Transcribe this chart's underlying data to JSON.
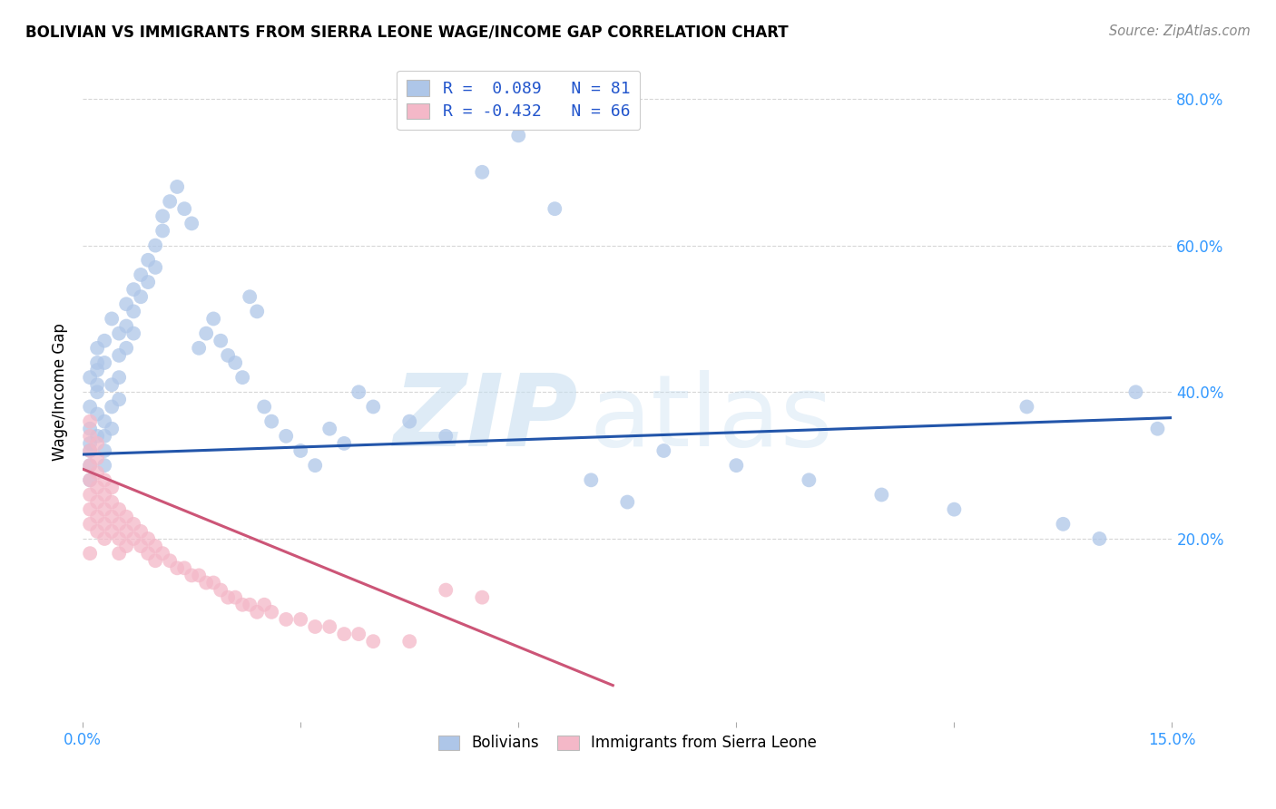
{
  "title": "BOLIVIAN VS IMMIGRANTS FROM SIERRA LEONE WAGE/INCOME GAP CORRELATION CHART",
  "source": "Source: ZipAtlas.com",
  "ylabel": "Wage/Income Gap",
  "y_tick_vals": [
    0.2,
    0.4,
    0.6,
    0.8
  ],
  "y_tick_labels": [
    "20.0%",
    "40.0%",
    "60.0%",
    "80.0%"
  ],
  "xlim": [
    0.0,
    0.15
  ],
  "ylim": [
    -0.05,
    0.85
  ],
  "legend_line1": "R =  0.089   N = 81",
  "legend_line2": "R = -0.432   N = 66",
  "legend_labels": [
    "Bolivians",
    "Immigrants from Sierra Leone"
  ],
  "blue_color": "#aec6e8",
  "pink_color": "#f4b8c8",
  "blue_line_color": "#2255aa",
  "pink_line_color": "#cc5577",
  "blue_line_x0": 0.0,
  "blue_line_y0": 0.315,
  "blue_line_x1": 0.15,
  "blue_line_y1": 0.365,
  "pink_line_x0": 0.0,
  "pink_line_y0": 0.295,
  "pink_line_x1": 0.073,
  "pink_line_y1": 0.0,
  "scatter_blue_x": [
    0.001,
    0.001,
    0.001,
    0.001,
    0.001,
    0.001,
    0.001,
    0.002,
    0.002,
    0.002,
    0.002,
    0.002,
    0.002,
    0.002,
    0.003,
    0.003,
    0.003,
    0.003,
    0.003,
    0.003,
    0.004,
    0.004,
    0.004,
    0.004,
    0.005,
    0.005,
    0.005,
    0.005,
    0.006,
    0.006,
    0.006,
    0.007,
    0.007,
    0.007,
    0.008,
    0.008,
    0.009,
    0.009,
    0.01,
    0.01,
    0.011,
    0.011,
    0.012,
    0.013,
    0.014,
    0.015,
    0.016,
    0.017,
    0.018,
    0.019,
    0.02,
    0.021,
    0.022,
    0.023,
    0.024,
    0.025,
    0.026,
    0.028,
    0.03,
    0.032,
    0.034,
    0.036,
    0.038,
    0.04,
    0.045,
    0.05,
    0.055,
    0.06,
    0.065,
    0.07,
    0.075,
    0.08,
    0.09,
    0.1,
    0.11,
    0.12,
    0.13,
    0.135,
    0.14,
    0.145,
    0.148
  ],
  "scatter_blue_y": [
    0.32,
    0.3,
    0.28,
    0.35,
    0.33,
    0.42,
    0.38,
    0.4,
    0.37,
    0.34,
    0.44,
    0.41,
    0.46,
    0.43,
    0.32,
    0.3,
    0.36,
    0.34,
    0.47,
    0.44,
    0.41,
    0.38,
    0.35,
    0.5,
    0.48,
    0.45,
    0.42,
    0.39,
    0.52,
    0.49,
    0.46,
    0.54,
    0.51,
    0.48,
    0.56,
    0.53,
    0.58,
    0.55,
    0.6,
    0.57,
    0.64,
    0.62,
    0.66,
    0.68,
    0.65,
    0.63,
    0.46,
    0.48,
    0.5,
    0.47,
    0.45,
    0.44,
    0.42,
    0.53,
    0.51,
    0.38,
    0.36,
    0.34,
    0.32,
    0.3,
    0.35,
    0.33,
    0.4,
    0.38,
    0.36,
    0.34,
    0.7,
    0.75,
    0.65,
    0.28,
    0.25,
    0.32,
    0.3,
    0.28,
    0.26,
    0.24,
    0.38,
    0.22,
    0.2,
    0.4,
    0.35
  ],
  "scatter_pink_x": [
    0.001,
    0.001,
    0.001,
    0.001,
    0.001,
    0.001,
    0.001,
    0.001,
    0.001,
    0.002,
    0.002,
    0.002,
    0.002,
    0.002,
    0.002,
    0.002,
    0.003,
    0.003,
    0.003,
    0.003,
    0.003,
    0.004,
    0.004,
    0.004,
    0.004,
    0.005,
    0.005,
    0.005,
    0.005,
    0.006,
    0.006,
    0.006,
    0.007,
    0.007,
    0.008,
    0.008,
    0.009,
    0.009,
    0.01,
    0.01,
    0.011,
    0.012,
    0.013,
    0.014,
    0.015,
    0.016,
    0.017,
    0.018,
    0.019,
    0.02,
    0.021,
    0.022,
    0.023,
    0.024,
    0.025,
    0.026,
    0.028,
    0.03,
    0.032,
    0.034,
    0.036,
    0.038,
    0.04,
    0.045,
    0.05,
    0.055
  ],
  "scatter_pink_y": [
    0.3,
    0.28,
    0.26,
    0.24,
    0.22,
    0.32,
    0.34,
    0.36,
    0.18,
    0.29,
    0.27,
    0.25,
    0.23,
    0.21,
    0.31,
    0.33,
    0.28,
    0.26,
    0.24,
    0.22,
    0.2,
    0.27,
    0.25,
    0.23,
    0.21,
    0.24,
    0.22,
    0.2,
    0.18,
    0.23,
    0.21,
    0.19,
    0.22,
    0.2,
    0.21,
    0.19,
    0.2,
    0.18,
    0.19,
    0.17,
    0.18,
    0.17,
    0.16,
    0.16,
    0.15,
    0.15,
    0.14,
    0.14,
    0.13,
    0.12,
    0.12,
    0.11,
    0.11,
    0.1,
    0.11,
    0.1,
    0.09,
    0.09,
    0.08,
    0.08,
    0.07,
    0.07,
    0.06,
    0.06,
    0.13,
    0.12
  ]
}
